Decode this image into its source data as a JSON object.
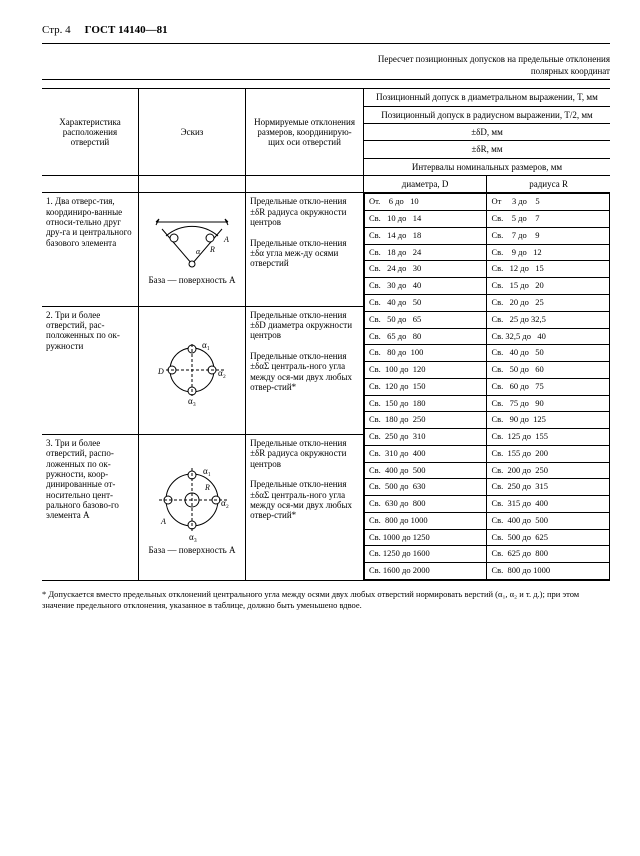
{
  "header": {
    "page": "Стр. 4",
    "gost": "ГОСТ 14140—81"
  },
  "title": "Пересчет позиционных допусков на предельные отклонения",
  "subtitle": "полярных координат",
  "colHeaders": {
    "char": "Характеристика расположения отверстий",
    "sketch": "Эскиз",
    "norm": "Нормируемые отклонения размеров, координирую-щих оси отверстий",
    "posDia": "Позиционный допуск в диаметральном выражении, T, мм",
    "posRad": "Позиционный допуск в радиусном выражении, T/2, мм",
    "dD": "±δD, мм",
    "dR": "±δR, мм",
    "intervals": "Интервалы номинальных размеров, мм",
    "diaD": "диаметра, D",
    "radR": "радиуса R"
  },
  "rows": [
    {
      "char": "1. Два отверс-тия, координиро-ванные относи-тельно друг дру-га и центрального базового элемента",
      "base": "База — поверхность A",
      "norm": "Предельные откло-нения ±δR радиуса окружности центров\n\nПредельные откло-нения ±δα угла меж-ду осями отверстий"
    },
    {
      "char": "2. Три и более отверстий, рас-положенных по ок-ружности",
      "norm": "Предельные откло-нения ±δD диаметра окружности центров\n\nПредельные откло-нения ±δαΣ централь-ного угла между ося-ми двух любых отвер-стий*"
    },
    {
      "char": "3. Три и более отверстий, распо-ложенных по ок-ружности, коор-динированные от-носительно цент-рального базово-го элемента A",
      "base": "База — поверхность A",
      "norm": "Предельные откло-нения ±δR радиуса окружности центров\n\nПредельные откло-нения ±δαΣ централь-ного угла между ося-ми двух любых отвер-стий*"
    }
  ],
  "intervalsD": [
    "От.    6 до   10",
    "Св.   10 до   14",
    "Св.   14 до   18",
    "Св.   18 до   24",
    "Св.   24 до   30",
    "Св.   30 до   40",
    "Св.   40 до   50",
    "Св.   50 до   65",
    "Св.   65 до   80",
    "Св.   80 до  100",
    "Св.  100 до  120",
    "Св.  120 до  150",
    "Св.  150 до  180",
    "Св.  180 до  250",
    "Св.  250 до  310",
    "Св.  310 до  400",
    "Св.  400 до  500",
    "Св.  500 до  630",
    "Св.  630 до  800",
    "Св.  800 до 1000",
    "Св. 1000 до 1250",
    "Св. 1250 до 1600",
    "Св. 1600 до 2000"
  ],
  "intervalsR": [
    "От     3 до    5",
    "Св.    5 до    7",
    "Св.    7 до    9",
    "Св.    9 до   12",
    "Св.   12 до   15",
    "Св.   15 до   20",
    "Св.   20 до   25",
    "Св.   25 до 32,5",
    "Св. 32,5 до   40",
    "Св.   40 до   50",
    "Св.   50 до   60",
    "Св.   60 до   75",
    "Св.   75 до   90",
    "Св.   90 до  125",
    "Св.  125 до  155",
    "Св.  155 до  200",
    "Св.  200 до  250",
    "Св.  250 до  315",
    "Св.  315 до  400",
    "Св.  400 до  500",
    "Св.  500 до  625",
    "Св.  625 до  800",
    "Св.  800 до 1000"
  ],
  "note": "* Допускается вместо предельных отклонений центрального угла между осями двух любых отверстий нормировать верстий (α₁, α₂ и т. д.); при этом значение предельного отклонения, указанное в таблице, должно быть уменьшено вдвое.",
  "alpha": {
    "a1": "α₁",
    "a2": "α₂",
    "a3": "α₃"
  }
}
